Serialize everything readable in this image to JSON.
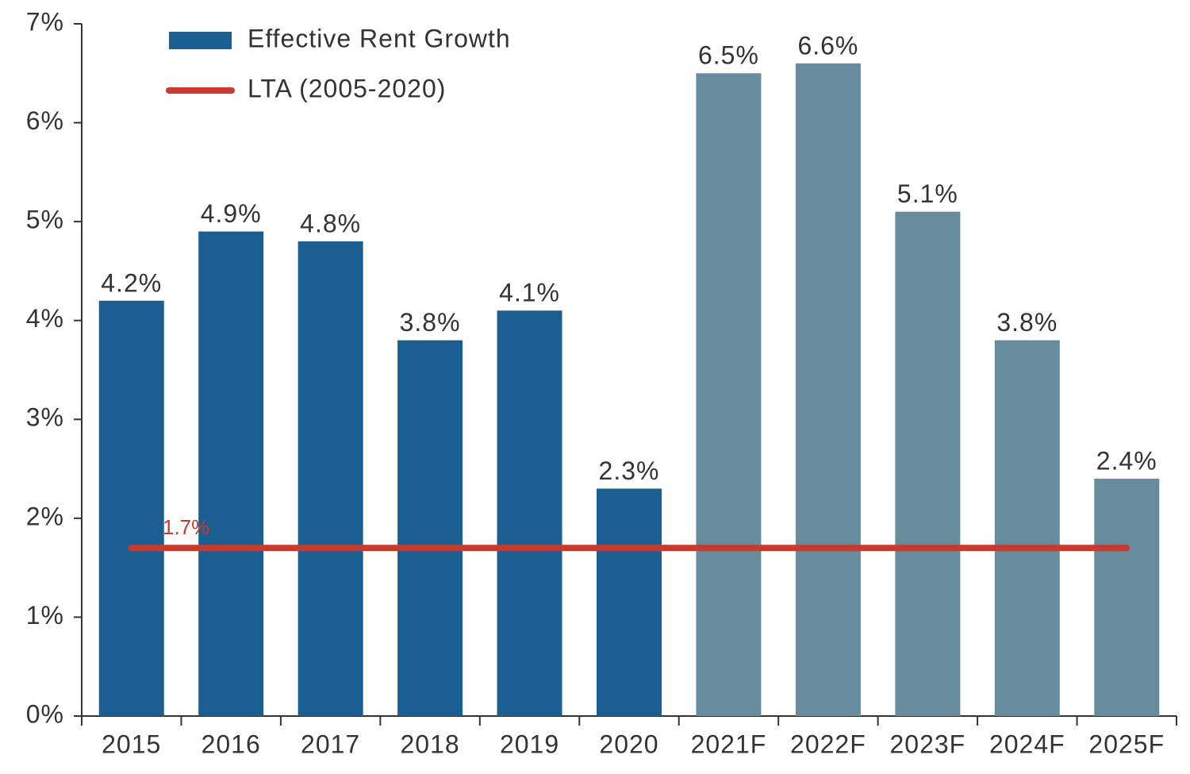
{
  "chart_data": {
    "type": "bar",
    "categories": [
      "2015",
      "2016",
      "2017",
      "2018",
      "2019",
      "2020",
      "2021F",
      "2022F",
      "2023F",
      "2024F",
      "2025F"
    ],
    "series": [
      {
        "name": "Effective Rent Growth",
        "color": "#1b5e91",
        "values": [
          4.2,
          4.9,
          4.8,
          3.8,
          4.1,
          2.3,
          6.5,
          6.6,
          5.1,
          3.8,
          2.4
        ],
        "value_labels": [
          "4.2%",
          "4.9%",
          "4.8%",
          "3.8%",
          "4.1%",
          "2.3%",
          "6.5%",
          "6.6%",
          "5.1%",
          "3.8%",
          "2.4%"
        ],
        "colors": [
          "#1b5e91",
          "#1b5e91",
          "#1b5e91",
          "#1b5e91",
          "#1b5e91",
          "#1b5e91",
          "#668c9e",
          "#668c9e",
          "#668c9e",
          "#668c9e",
          "#668c9e"
        ]
      }
    ],
    "reference_line": {
      "name": "LTA (2005-2020)",
      "value": 1.7,
      "value_label": "1.7%",
      "color": "#c93a2a"
    },
    "ylim": [
      0,
      7
    ],
    "yticks": [
      {
        "value": 0,
        "label": "0%"
      },
      {
        "value": 1,
        "label": "1%"
      },
      {
        "value": 2,
        "label": "2%"
      },
      {
        "value": 3,
        "label": "3%"
      },
      {
        "value": 4,
        "label": "4%"
      },
      {
        "value": 5,
        "label": "5%"
      },
      {
        "value": 6,
        "label": "6%"
      },
      {
        "value": 7,
        "label": "7%"
      }
    ]
  }
}
